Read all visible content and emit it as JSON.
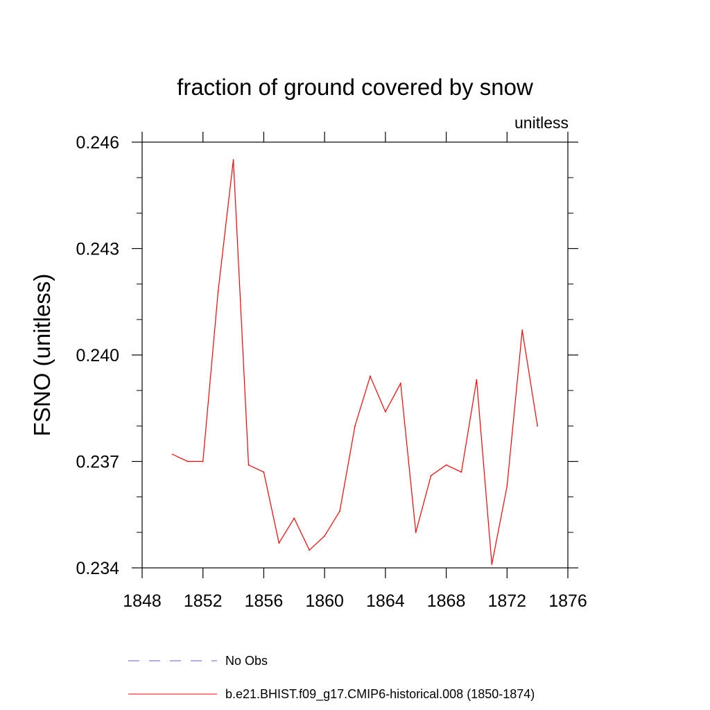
{
  "chart_data": {
    "type": "line",
    "title": "fraction of ground covered by snow",
    "units_label": "unitless",
    "xlabel": "",
    "ylabel": "FSNO  (unitless)",
    "xlim": [
      1848,
      1876
    ],
    "ylim": [
      0.234,
      0.246
    ],
    "x_ticks": [
      "1848",
      "1852",
      "1856",
      "1860",
      "1864",
      "1868",
      "1872",
      "1876"
    ],
    "y_ticks": [
      "0.234",
      "0.237",
      "0.240",
      "0.243",
      "0.246"
    ],
    "x": [
      1850,
      1851,
      1852,
      1853,
      1854,
      1855,
      1856,
      1857,
      1858,
      1859,
      1860,
      1861,
      1862,
      1863,
      1864,
      1865,
      1866,
      1867,
      1868,
      1869,
      1870,
      1871,
      1872,
      1873,
      1874
    ],
    "series": [
      {
        "name": "b.e21.BHIST.f09_g17.CMIP6-historical.008 (1850-1874)",
        "color": "#ff0000",
        "dash": "solid",
        "values": [
          0.2372,
          0.237,
          0.237,
          0.2418,
          0.2455,
          0.2369,
          0.2367,
          0.2347,
          0.2354,
          0.2345,
          0.2349,
          0.2356,
          0.238,
          0.2394,
          0.2384,
          0.2392,
          0.235,
          0.2366,
          0.2369,
          0.2367,
          0.2393,
          0.2341,
          0.2363,
          0.2407,
          0.238
        ]
      }
    ],
    "legend": [
      {
        "label": "No Obs",
        "color": "#6a5acd",
        "dash": "dashed"
      },
      {
        "label": "b.e21.BHIST.f09_g17.CMIP6-historical.008 (1850-1874)",
        "color": "#ff0000",
        "dash": "solid"
      }
    ]
  }
}
